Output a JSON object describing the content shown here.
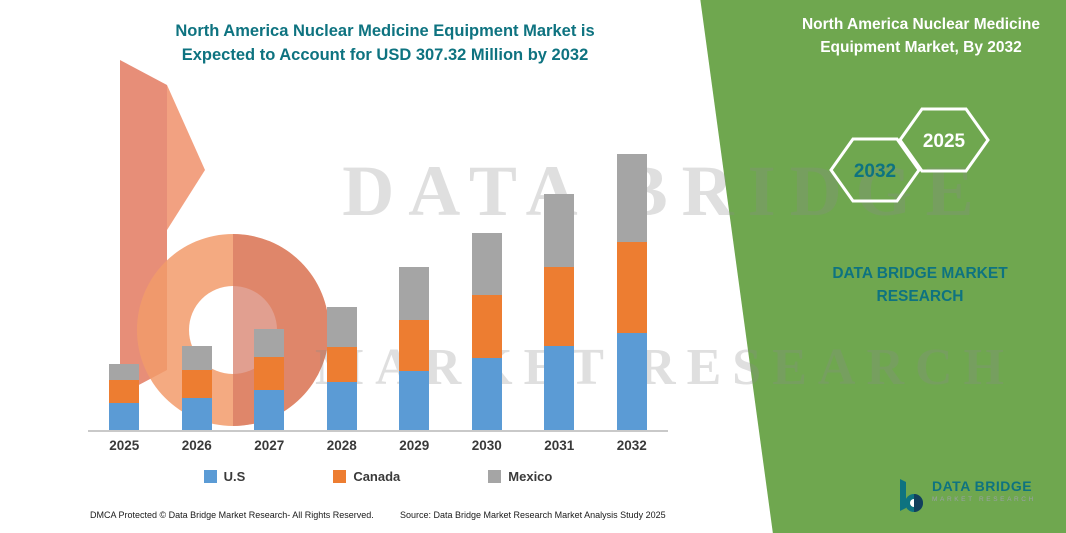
{
  "header": {
    "title_line1": "North America Nuclear Medicine Equipment Market is",
    "title_line2": "Expected to Account for USD 307.32 Million by 2032"
  },
  "banner": {
    "title": "North America Nuclear Medicine Equipment Market, By 2032",
    "hexagon_back_year": "2032",
    "hexagon_front_year": "2025",
    "brand_name": "DATA BRIDGE MARKET RESEARCH"
  },
  "watermark": {
    "line1": "DATA BRIDGE",
    "line2": "MARKET RESEARCH"
  },
  "logo": {
    "name": "DATA BRIDGE",
    "tagline": "MARKET RESEARCH"
  },
  "footer": {
    "dmca_text": "DMCA Protected © Data Bridge Market Research- All Rights Reserved.",
    "source_text": "Source: Data Bridge Market Research Market Analysis Study 2025"
  },
  "colors": {
    "accent_teal": "#0E7380",
    "banner_green": "#6FA74F",
    "us_blue": "#5B9BD5",
    "canada_orange": "#ED7D31",
    "mexico_gray": "#A5A5A5"
  },
  "chart_data": {
    "type": "bar",
    "stacked": true,
    "title": "North America Nuclear Medicine Equipment Market is Expected to Account for USD 307.32 Million by 2032",
    "unit": "USD Million",
    "categories": [
      "2025",
      "2026",
      "2027",
      "2028",
      "2029",
      "2030",
      "2031",
      "2032"
    ],
    "series": [
      {
        "name": "U.S",
        "color": "#5B9BD5",
        "values": [
          30,
          36,
          45,
          53,
          66,
          80,
          93,
          108
        ]
      },
      {
        "name": "Canada",
        "color": "#ED7D31",
        "values": [
          26,
          31,
          36,
          39,
          57,
          70,
          88,
          101
        ]
      },
      {
        "name": "Mexico",
        "color": "#A5A5A5",
        "values": [
          17,
          26,
          31,
          45,
          58,
          69,
          82,
          98
        ]
      }
    ],
    "totals": [
      73,
      93,
      112,
      137,
      181,
      219,
      263,
      307.32
    ],
    "ylim": [
      0,
      320
    ],
    "y_axis_visible": false,
    "gridlines": false,
    "legend_position": "bottom"
  }
}
